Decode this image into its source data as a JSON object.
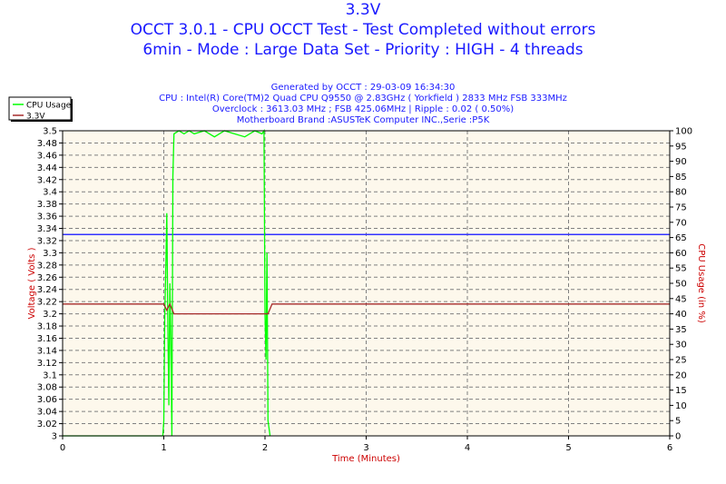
{
  "titles": [
    "3.3V",
    "OCCT 3.0.1 - CPU OCCT Test - Test Completed without errors",
    "6min - Mode : Large Data Set - Priority : HIGH - 4 threads"
  ],
  "subtitles": [
    "Generated by OCCT : 29-03-09 16:34:30",
    "CPU : Intel(R) Core(TM)2 Quad CPU Q9550 @ 2.83GHz ( Yorkfield ) 2833 MHz FSB 333MHz",
    "Overclock : 3613.03 MHz ; FSB 425.06MHz | Ripple : 0.02 ( 0.50%)",
    "Motherboard Brand :ASUSTeK Computer INC.,Serie :P5K"
  ],
  "colors": {
    "cpu": "#00ff00",
    "voltage": "#a52a2a",
    "reference": "#3333ff",
    "plot_bg": "#fdf8ec",
    "title": "#1a1aff",
    "axis_label": "#cc0000"
  },
  "chart_data": {
    "type": "line",
    "xlabel": "Time (Minutes)",
    "ylabel": "Voltage ( Volts )",
    "y2label": "CPU Usage (in %)",
    "xlim": [
      0,
      6
    ],
    "ylim": [
      3.0,
      3.5
    ],
    "y2lim": [
      0,
      100
    ],
    "xticks": [
      "0",
      "1",
      "2",
      "3",
      "4",
      "5",
      "6"
    ],
    "yticks": [
      "3",
      "3.02",
      "3.04",
      "3.06",
      "3.08",
      "3.1",
      "3.12",
      "3.14",
      "3.16",
      "3.18",
      "3.2",
      "3.22",
      "3.24",
      "3.26",
      "3.28",
      "3.3",
      "3.32",
      "3.34",
      "3.36",
      "3.38",
      "3.4",
      "3.42",
      "3.44",
      "3.46",
      "3.48",
      "3.5"
    ],
    "y2ticks": [
      "0",
      "5",
      "10",
      "15",
      "20",
      "25",
      "30",
      "35",
      "40",
      "45",
      "50",
      "55",
      "60",
      "65",
      "70",
      "75",
      "80",
      "85",
      "90",
      "95",
      "100"
    ],
    "grid": true,
    "legend": {
      "position": "top-left",
      "entries": [
        "CPU Usage",
        "3.3V"
      ]
    },
    "reference_line": {
      "y": 3.33
    },
    "series": [
      {
        "name": "CPU Usage",
        "axis": "right",
        "x": [
          0,
          0.99,
          1.0,
          1.01,
          1.02,
          1.03,
          1.04,
          1.05,
          1.06,
          1.07,
          1.08,
          1.09,
          1.1,
          1.15,
          1.2,
          1.25,
          1.3,
          1.4,
          1.5,
          1.6,
          1.7,
          1.8,
          1.9,
          1.97,
          1.99,
          2.0,
          2.01,
          2.02,
          2.03,
          2.05
        ],
        "y": [
          0,
          0,
          5,
          40,
          55,
          73,
          35,
          10,
          50,
          30,
          0,
          85,
          99,
          100,
          99,
          100,
          99,
          100,
          98,
          100,
          99,
          98,
          100,
          99,
          100,
          40,
          25,
          60,
          5,
          0
        ]
      },
      {
        "name": "3.3V",
        "axis": "left",
        "x": [
          0,
          1.0,
          1.03,
          1.06,
          1.1,
          2.03,
          2.07,
          6
        ],
        "y": [
          3.216,
          3.216,
          3.206,
          3.216,
          3.2,
          3.2,
          3.216,
          3.216
        ]
      }
    ]
  }
}
